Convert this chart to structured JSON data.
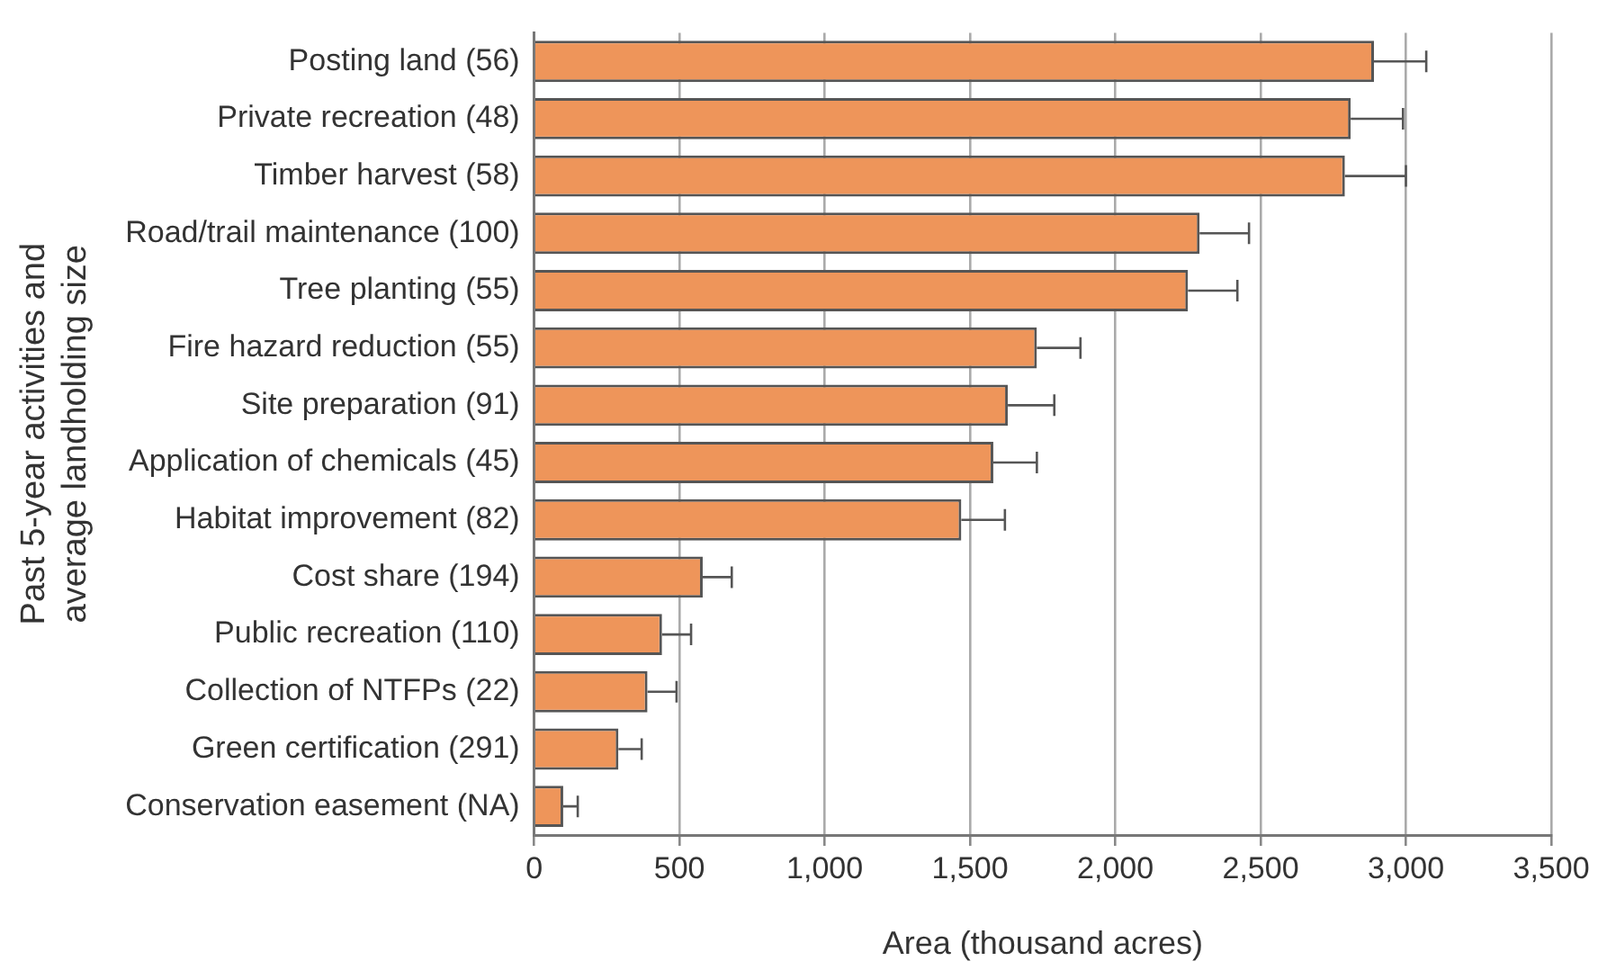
{
  "chart_data": {
    "type": "bar",
    "orientation": "horizontal",
    "xlabel": "Area (thousand acres)",
    "ylabel": "Past 5-year activities and\naverage landholding size",
    "categories": [
      "Posting land (56)",
      "Private recreation (48)",
      "Timber harvest (58)",
      "Road/trail maintenance (100)",
      "Tree planting (55)",
      "Fire hazard reduction (55)",
      "Site preparation (91)",
      "Application of chemicals (45)",
      "Habitat improvement (82)",
      "Cost share (194)",
      "Public recreation (110)",
      "Collection of NTFPs (22)",
      "Green certification (291)",
      "Conservation easement (NA)"
    ],
    "values": [
      2890,
      2810,
      2790,
      2290,
      2250,
      1730,
      1630,
      1580,
      1470,
      580,
      440,
      390,
      290,
      100
    ],
    "errors": [
      [
        2890,
        3070
      ],
      [
        2810,
        2990
      ],
      [
        2790,
        3000
      ],
      [
        2290,
        2460
      ],
      [
        2250,
        2420
      ],
      [
        1730,
        1880
      ],
      [
        1630,
        1790
      ],
      [
        1580,
        1730
      ],
      [
        1470,
        1620
      ],
      [
        580,
        680
      ],
      [
        440,
        540
      ],
      [
        390,
        490
      ],
      [
        290,
        370
      ],
      [
        100,
        150
      ]
    ],
    "color": "#ee955a",
    "xlim": [
      0,
      3500
    ],
    "xticks": [
      0,
      500,
      {
        "value": 1000,
        "label": "1,000"
      },
      {
        "value": 1500,
        "label": "1,500"
      },
      {
        "value": 2000,
        "label": "2,000"
      },
      {
        "value": 2500,
        "label": "2,500"
      },
      {
        "value": 3000,
        "label": "3,000"
      },
      {
        "value": 3500,
        "label": "3,500"
      }
    ],
    "grid": "x",
    "legend": false
  }
}
